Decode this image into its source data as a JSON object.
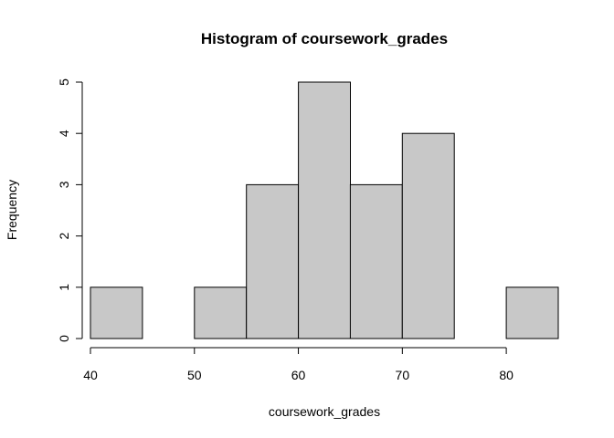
{
  "chart_data": {
    "type": "bar",
    "title": "Histogram of coursework_grades",
    "xlabel": "coursework_grades",
    "ylabel": "Frequency",
    "bins": [
      {
        "start": 40,
        "end": 45,
        "count": 1
      },
      {
        "start": 45,
        "end": 50,
        "count": 0
      },
      {
        "start": 50,
        "end": 55,
        "count": 1
      },
      {
        "start": 55,
        "end": 60,
        "count": 3
      },
      {
        "start": 60,
        "end": 65,
        "count": 5
      },
      {
        "start": 65,
        "end": 70,
        "count": 3
      },
      {
        "start": 70,
        "end": 75,
        "count": 4
      },
      {
        "start": 75,
        "end": 80,
        "count": 0
      },
      {
        "start": 80,
        "end": 85,
        "count": 1
      }
    ],
    "x_ticks": [
      40,
      50,
      60,
      70,
      80
    ],
    "y_ticks": [
      0,
      1,
      2,
      3,
      4,
      5
    ],
    "xlim": [
      40,
      85
    ],
    "ylim": [
      0,
      5
    ],
    "grid": false,
    "legend": "none",
    "colors": {
      "bar_fill": "#c8c8c8",
      "bar_stroke": "#000000",
      "axis": "#000000",
      "background": "#ffffff"
    }
  }
}
